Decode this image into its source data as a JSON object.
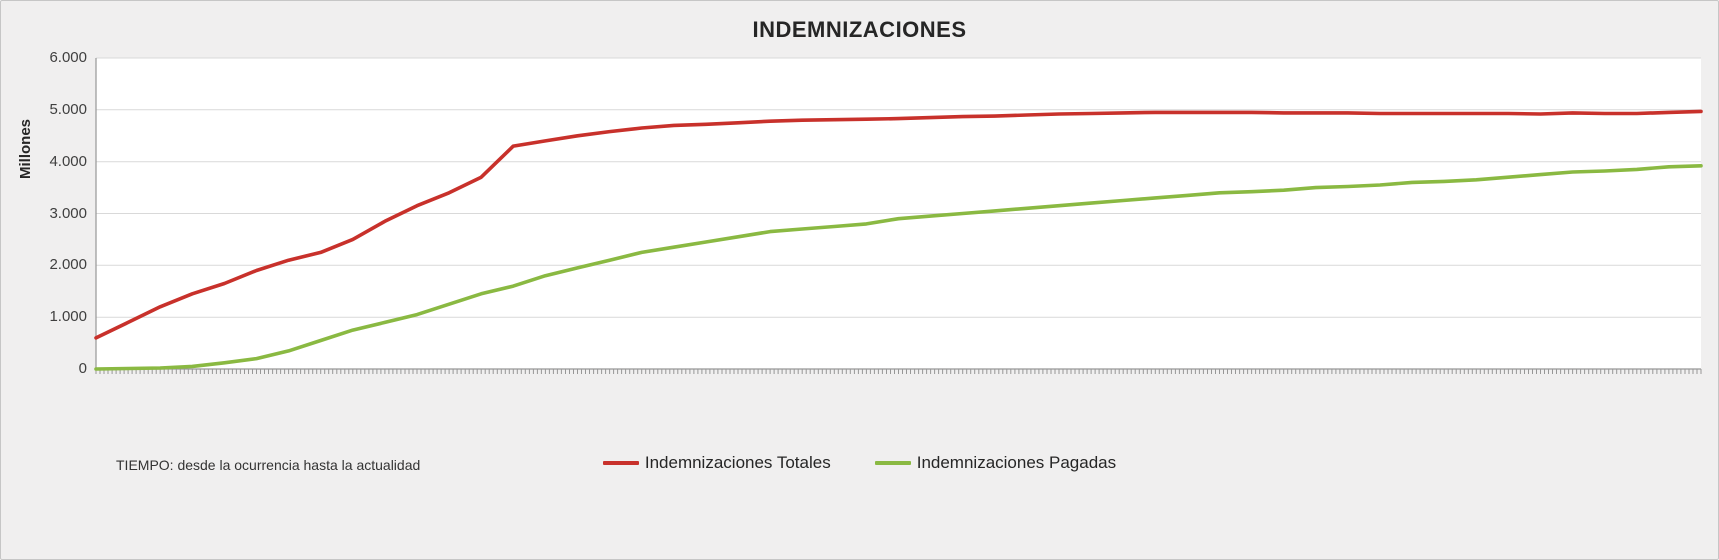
{
  "chart_data": {
    "type": "line",
    "title": "INDEMNIZACIONES",
    "ylabel": "Millones",
    "xlabel": "",
    "note": "TIEMPO: desde la  ocurrencia hasta la actualidad",
    "ylim": [
      0,
      6000
    ],
    "ytick_values": [
      0,
      1000,
      2000,
      3000,
      4000,
      5000,
      6000
    ],
    "ytick_labels": [
      "0",
      "1.000",
      "2.000",
      "3.000",
      "4.000",
      "5.000",
      "6.000"
    ],
    "xtick_labels": [],
    "grid": "horizontal",
    "legend_position": "bottom",
    "x_percent": [
      0,
      2,
      4,
      6,
      8,
      10,
      12,
      14,
      16,
      18,
      20,
      22,
      24,
      26,
      28,
      30,
      32,
      34,
      36,
      38,
      40,
      42,
      44,
      46,
      48,
      50,
      52,
      54,
      56,
      58,
      60,
      62,
      64,
      66,
      68,
      70,
      72,
      74,
      76,
      78,
      80,
      82,
      84,
      86,
      88,
      90,
      92,
      94,
      96,
      98,
      100
    ],
    "series": [
      {
        "name": "Indemnizaciones  Totales",
        "color": "#c8312b",
        "values": [
          600,
          900,
          1200,
          1450,
          1650,
          1900,
          2100,
          2250,
          2500,
          2850,
          3150,
          3400,
          3700,
          4300,
          4400,
          4500,
          4580,
          4650,
          4700,
          4720,
          4750,
          4780,
          4800,
          4810,
          4820,
          4830,
          4850,
          4870,
          4880,
          4900,
          4920,
          4930,
          4940,
          4950,
          4950,
          4950,
          4950,
          4940,
          4940,
          4940,
          4930,
          4930,
          4930,
          4930,
          4930,
          4920,
          4940,
          4930,
          4930,
          4950,
          4970
        ]
      },
      {
        "name": "Indemnizaciones Pagadas",
        "color": "#8ab942",
        "values": [
          0,
          10,
          20,
          50,
          120,
          200,
          350,
          550,
          750,
          900,
          1050,
          1250,
          1450,
          1600,
          1800,
          1950,
          2100,
          2250,
          2350,
          2450,
          2550,
          2650,
          2700,
          2750,
          2800,
          2900,
          2950,
          3000,
          3050,
          3100,
          3150,
          3200,
          3250,
          3300,
          3350,
          3400,
          3420,
          3450,
          3500,
          3520,
          3550,
          3600,
          3620,
          3650,
          3700,
          3750,
          3800,
          3820,
          3850,
          3900,
          3920
        ]
      }
    ],
    "plot_colors": {
      "plot_background": "#ffffff",
      "outer_background": "#f0efef",
      "gridline": "#d9d9d9",
      "axis": "#979797"
    }
  }
}
